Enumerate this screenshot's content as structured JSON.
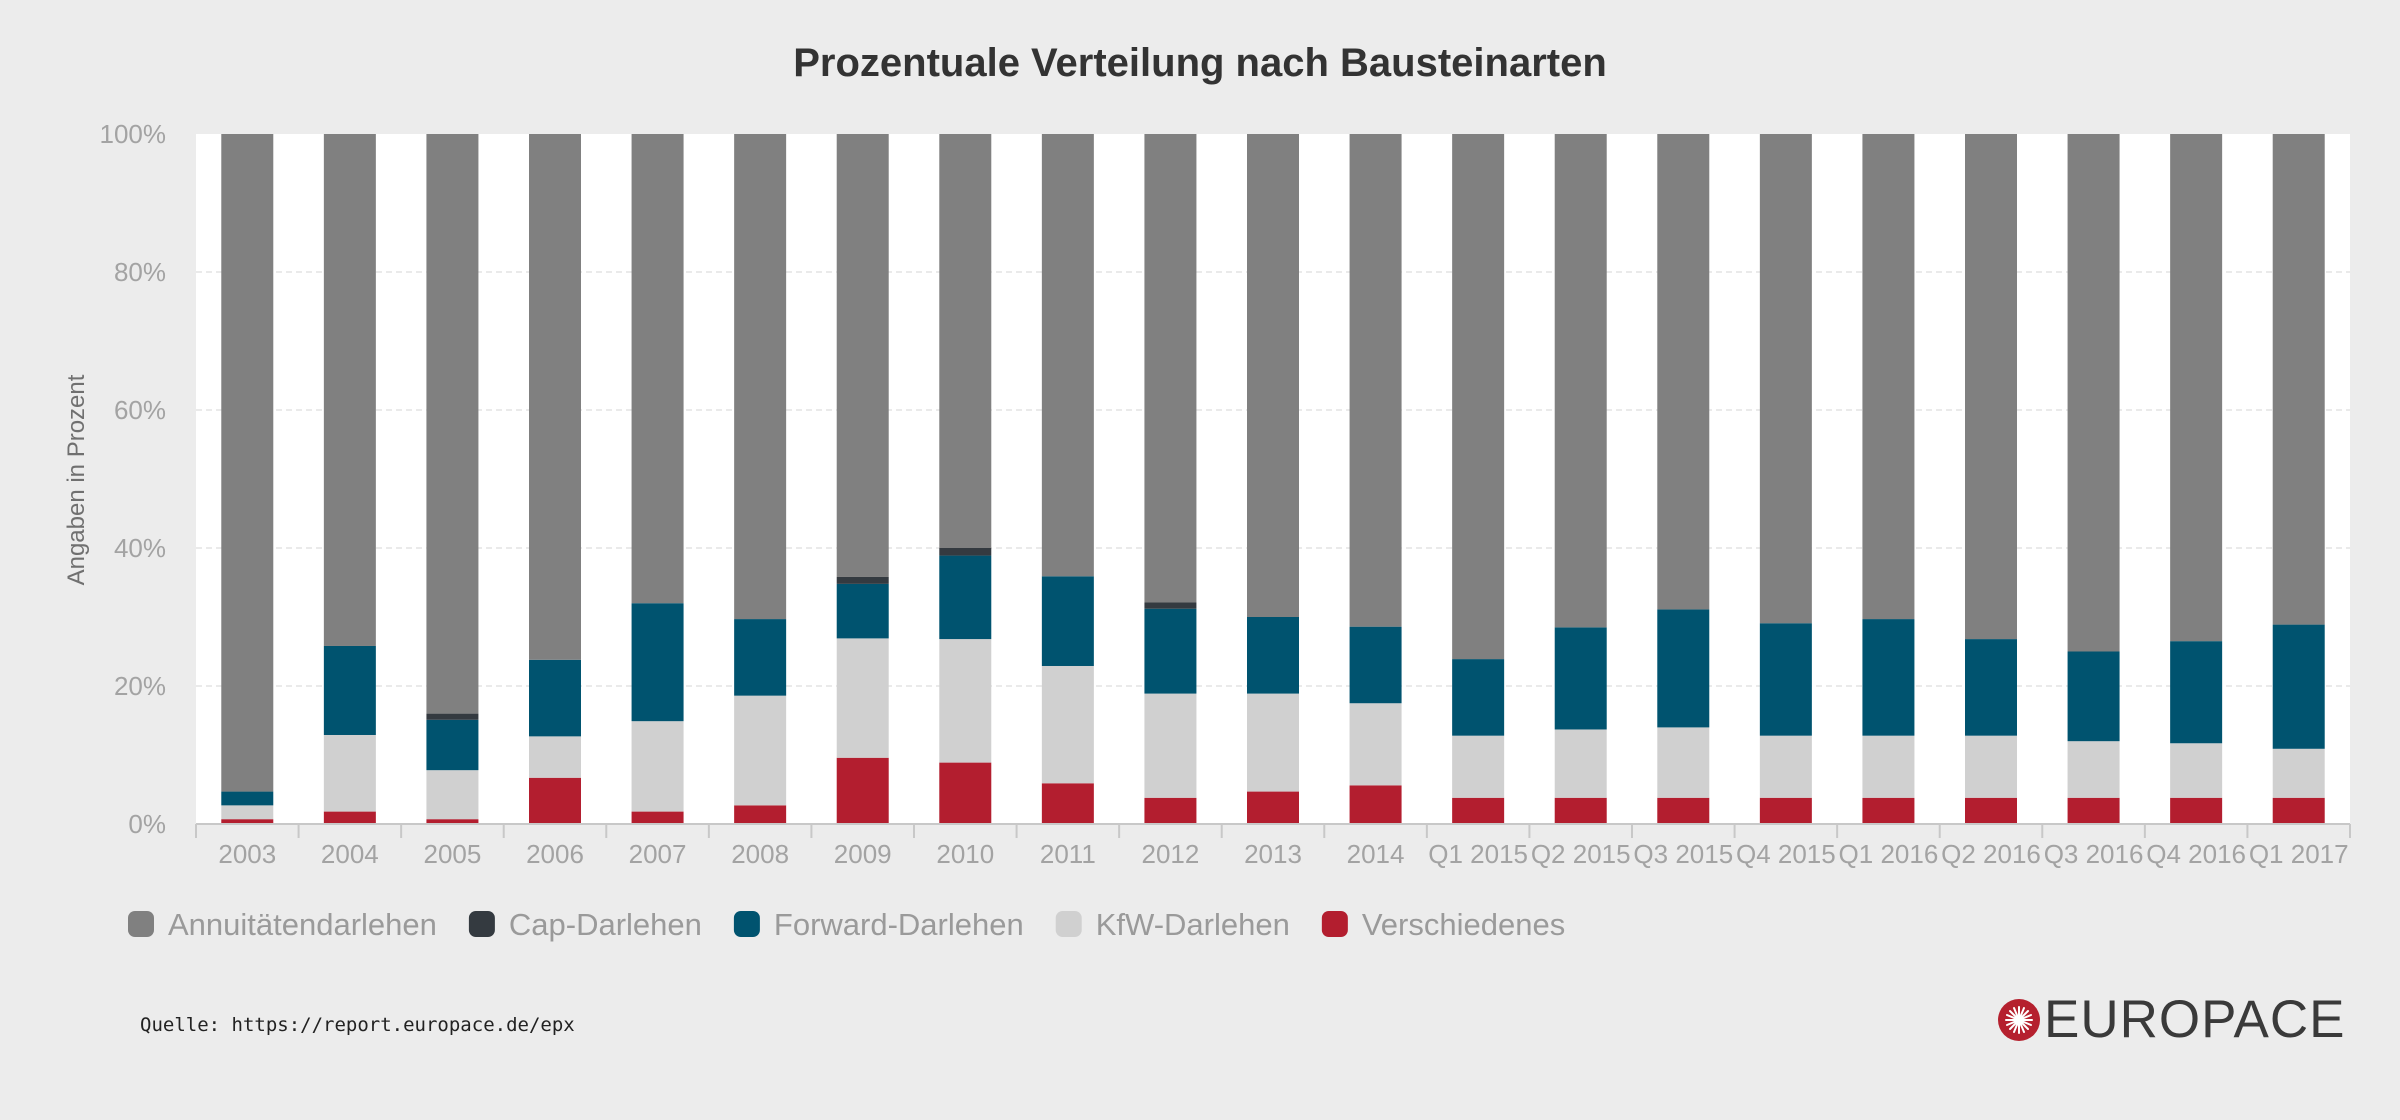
{
  "chart_data": {
    "type": "bar",
    "stacked": true,
    "title": "Prozentuale Verteilung nach Bausteinarten",
    "xlabel": "",
    "ylabel": "Angaben in Prozent",
    "ylim": [
      0,
      100
    ],
    "yticks": [
      "0%",
      "20%",
      "40%",
      "60%",
      "80%",
      "100%"
    ],
    "grid": true,
    "legend_position": "bottom-left",
    "categories": [
      "2003",
      "2004",
      "2005",
      "2006",
      "2007",
      "2008",
      "2009",
      "2010",
      "2011",
      "2012",
      "2013",
      "2014",
      "Q1 2015",
      "Q2 2015",
      "Q3 2015",
      "Q4 2015",
      "Q1 2016",
      "Q2 2016",
      "Q3 2016",
      "Q4 2016",
      "Q1 2017"
    ],
    "series": [
      {
        "name": "Verschiedenes",
        "color": "#b31e2f",
        "values": [
          0.7,
          1.8,
          0.7,
          6.7,
          1.8,
          2.7,
          9.6,
          8.9,
          5.9,
          3.8,
          4.7,
          5.6,
          3.8,
          3.8,
          3.8,
          3.8,
          3.8,
          3.8,
          3.8,
          3.8,
          3.8
        ]
      },
      {
        "name": "KfW-Darlehen",
        "color": "#d0d0d0",
        "values": [
          2.0,
          11.1,
          7.1,
          6.0,
          13.1,
          15.9,
          17.3,
          17.9,
          17.0,
          15.1,
          14.2,
          11.9,
          9.0,
          9.9,
          10.2,
          9.0,
          9.0,
          9.0,
          8.2,
          7.9,
          7.1
        ]
      },
      {
        "name": "Forward-Darlehen",
        "color": "#00536f",
        "values": [
          2.0,
          12.9,
          7.3,
          11.1,
          17.1,
          11.1,
          7.9,
          12.1,
          13.0,
          12.3,
          11.1,
          11.1,
          11.1,
          14.8,
          17.1,
          16.3,
          16.9,
          14.0,
          13.0,
          14.8,
          18.0
        ]
      },
      {
        "name": "Cap-Darlehen",
        "color": "#343a40",
        "values": [
          0,
          0,
          0.9,
          0,
          0,
          0,
          1.0,
          1.1,
          0,
          0.9,
          0,
          0,
          0,
          0,
          0,
          0,
          0,
          0,
          0,
          0,
          0
        ]
      },
      {
        "name": "Annuitätendarlehen",
        "color": "#808080",
        "values": [
          95.3,
          74.2,
          84.0,
          76.2,
          68.0,
          70.3,
          64.2,
          60.0,
          64.1,
          67.9,
          70.0,
          71.4,
          76.1,
          71.5,
          68.9,
          70.9,
          70.3,
          73.2,
          75.0,
          73.5,
          71.1
        ]
      }
    ],
    "legend_order": [
      "Annuitätendarlehen",
      "Cap-Darlehen",
      "Forward-Darlehen",
      "KfW-Darlehen",
      "Verschiedenes"
    ]
  },
  "footer": {
    "source_label": "Quelle:",
    "source_url": "https://report.europace.de/epx"
  },
  "brand": {
    "name": "EUROPACE",
    "color": "#b5202e"
  }
}
